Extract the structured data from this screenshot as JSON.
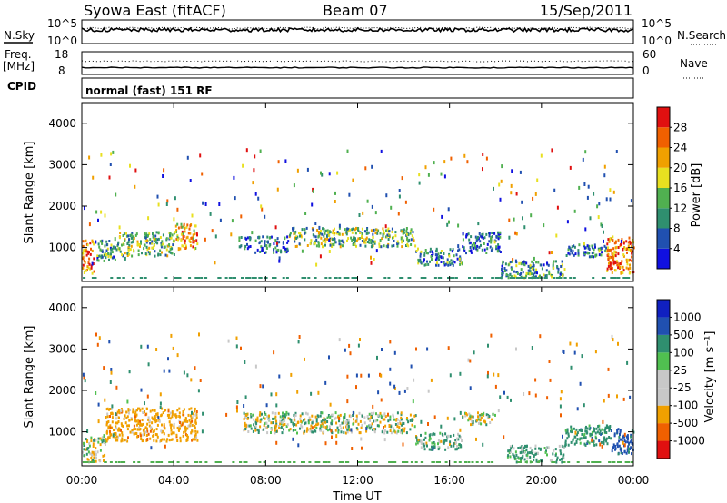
{
  "header": {
    "station": "Syowa East (fitACF)",
    "beam": "Beam 07",
    "date": "15/Sep/2011"
  },
  "noise_panel": {
    "left_label": "N.Sky",
    "right_label": "N.Search",
    "tick_top": "10^5",
    "tick_bottom": "10^0"
  },
  "freq_panel": {
    "left_label_1": "Freq.",
    "left_label_2": "[MHz]",
    "right_label": "Nave",
    "left_tick_top": "18",
    "left_tick_bottom": "8",
    "right_tick_top": "60",
    "right_tick_bottom": "0"
  },
  "cpid_panel": {
    "label": "CPID",
    "text": "normal (fast) 151 RF"
  },
  "x_axis": {
    "label": "Time UT",
    "ticks": [
      "00:00",
      "04:00",
      "08:00",
      "12:00",
      "16:00",
      "20:00",
      "00:00"
    ]
  },
  "power_colorbar": {
    "label": "Power [dB]",
    "colors": [
      "#1010e0",
      "#2050b0",
      "#2f8f6f",
      "#50b050",
      "#e8e020",
      "#f0a000",
      "#f06000",
      "#e01010"
    ],
    "ticks": [
      "4",
      "8",
      "12",
      "16",
      "20",
      "24",
      "28"
    ]
  },
  "velocity_colorbar": {
    "label": "Velocity [m s⁻¹]",
    "colors": [
      "#e01010",
      "#f06000",
      "#f0a000",
      "#c8c8c8",
      "#c8c8c8",
      "#50c050",
      "#2f8f6f",
      "#2050b0",
      "#1020c0"
    ],
    "ticks": [
      "-1000",
      "-500",
      "-100",
      "-25",
      "25",
      "100",
      "500",
      "1000"
    ]
  },
  "chart_data": [
    {
      "type": "heatmap",
      "title": "",
      "ylabel": "Slant Range [km]",
      "xlabel": "",
      "xlim": [
        0,
        24
      ],
      "ylim": [
        180,
        4500
      ],
      "yticks": [
        1000,
        2000,
        3000,
        4000
      ],
      "quantity": "Power [dB]",
      "clim": [
        0,
        32
      ],
      "regions": [
        {
          "t0": 0.0,
          "t1": 0.5,
          "r0": 400,
          "r1": 1200,
          "v": 26
        },
        {
          "t0": 0.5,
          "t1": 1.5,
          "r0": 700,
          "r1": 1200,
          "v": 10
        },
        {
          "t0": 1.5,
          "t1": 4.0,
          "r0": 800,
          "r1": 1400,
          "v": 14
        },
        {
          "t0": 4.0,
          "t1": 5.0,
          "r0": 1000,
          "r1": 1600,
          "v": 22
        },
        {
          "t0": 6.8,
          "t1": 7.3,
          "r0": 1000,
          "r1": 1300,
          "v": 8
        },
        {
          "t0": 7.5,
          "t1": 9.0,
          "r0": 900,
          "r1": 1300,
          "v": 8
        },
        {
          "t0": 9.0,
          "t1": 14.5,
          "r0": 1050,
          "r1": 1500,
          "v": 14
        },
        {
          "t0": 14.5,
          "t1": 16.5,
          "r0": 600,
          "r1": 1000,
          "v": 10
        },
        {
          "t0": 16.5,
          "t1": 18.2,
          "r0": 900,
          "r1": 1400,
          "v": 8
        },
        {
          "t0": 18.2,
          "t1": 21.0,
          "r0": 300,
          "r1": 700,
          "v": 10
        },
        {
          "t0": 21.0,
          "t1": 22.8,
          "r0": 800,
          "r1": 1100,
          "v": 8
        },
        {
          "t0": 22.8,
          "t1": 24.0,
          "r0": 400,
          "r1": 1300,
          "v": 26
        }
      ]
    },
    {
      "type": "heatmap",
      "title": "",
      "ylabel": "Slant Range [km]",
      "xlabel": "Time UT",
      "xlim": [
        0,
        24
      ],
      "ylim": [
        180,
        4500
      ],
      "yticks": [
        1000,
        2000,
        3000,
        4000
      ],
      "quantity": "Velocity [m s⁻¹]",
      "clim": [
        -1000,
        1000
      ],
      "regions": [
        {
          "t0": 0.0,
          "t1": 1.0,
          "r0": 300,
          "r1": 900,
          "v": -60
        },
        {
          "t0": 1.0,
          "t1": 5.0,
          "r0": 800,
          "r1": 1600,
          "v": -300
        },
        {
          "t0": 7.0,
          "t1": 14.5,
          "r0": 1000,
          "r1": 1500,
          "v": 0
        },
        {
          "t0": 14.5,
          "t1": 16.5,
          "r0": 600,
          "r1": 1000,
          "v": 80
        },
        {
          "t0": 16.5,
          "t1": 18.0,
          "r0": 1200,
          "r1": 1500,
          "v": 0
        },
        {
          "t0": 18.5,
          "t1": 21.0,
          "r0": 300,
          "r1": 700,
          "v": 150
        },
        {
          "t0": 21.0,
          "t1": 23.0,
          "r0": 700,
          "r1": 1200,
          "v": 300
        },
        {
          "t0": 23.0,
          "t1": 24.0,
          "r0": 500,
          "r1": 1100,
          "v": 700
        }
      ]
    }
  ]
}
